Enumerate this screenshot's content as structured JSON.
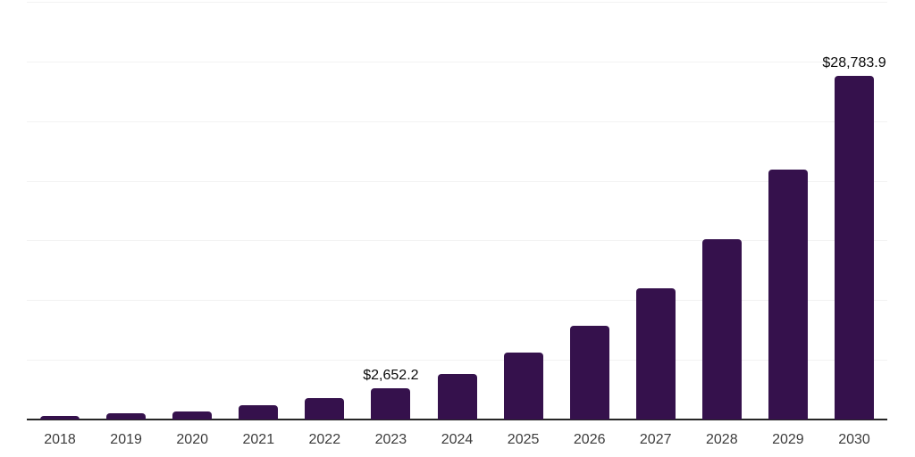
{
  "chart_data": {
    "type": "bar",
    "title": "",
    "subtitle": "",
    "xlabel": "",
    "ylabel": "",
    "categories": [
      "2018",
      "2019",
      "2020",
      "2021",
      "2022",
      "2023",
      "2024",
      "2025",
      "2026",
      "2027",
      "2028",
      "2029",
      "2030"
    ],
    "values": [
      280,
      490,
      710,
      1200,
      1800,
      2652.2,
      3790,
      5580,
      7890,
      11030,
      15140,
      20980,
      28783.9
    ],
    "value_unit_prefix": "$",
    "data_labels": [
      {
        "category": "2023",
        "text": "$2,652.2"
      },
      {
        "category": "2030",
        "text": "$28,783.9"
      }
    ],
    "ylim": [
      0,
      35000
    ],
    "gridline_interval": 5000,
    "grid": true,
    "y_axis_tick_labels_visible": false,
    "legend": "none",
    "colors": {
      "bar": "#35114C",
      "gridline": "#F2F2F2",
      "axis_line": "#262626",
      "tick_label": "#3C3C3C",
      "data_label": "#0A0A0A",
      "background": "#FFFFFF"
    }
  }
}
